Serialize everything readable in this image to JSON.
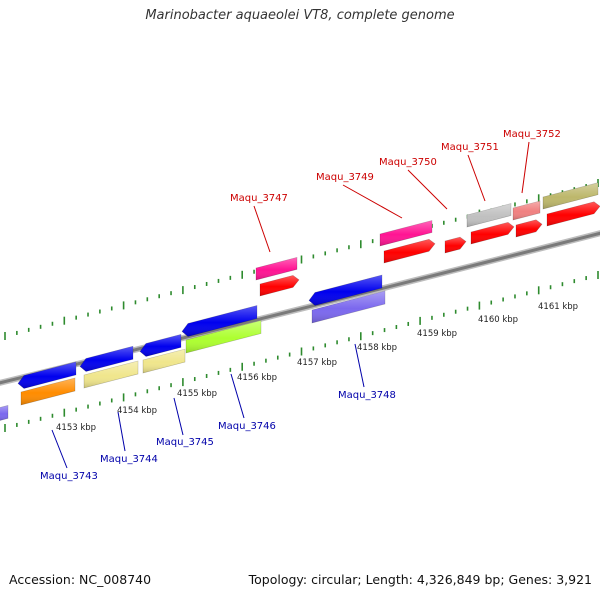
{
  "title": "Marinobacter aquaeolei VT8, complete genome",
  "footer": {
    "accession": "Accession: NC_008740",
    "summary": "Topology: circular; Length: 4,326,849 bp; Genes: 3,921"
  },
  "colors": {
    "backbone": "#8c8c8c",
    "tick": "#2e8b2e",
    "label_top": "#cc0000",
    "label_bottom": "#0000aa"
  },
  "kbp_labels": [
    "4153 kbp",
    "4154 kbp",
    "4155 kbp",
    "4156 kbp",
    "4157 kbp",
    "4158 kbp",
    "4159 kbp",
    "4160 kbp",
    "4161 kbp"
  ],
  "gene_labels_top": [
    "Maqu_3747",
    "Maqu_3749",
    "Maqu_3750",
    "Maqu_3751",
    "Maqu_3752"
  ],
  "gene_labels_bottom": [
    "Maqu_3743",
    "Maqu_3744",
    "Maqu_3745",
    "Maqu_3746",
    "Maqu_3748"
  ]
}
